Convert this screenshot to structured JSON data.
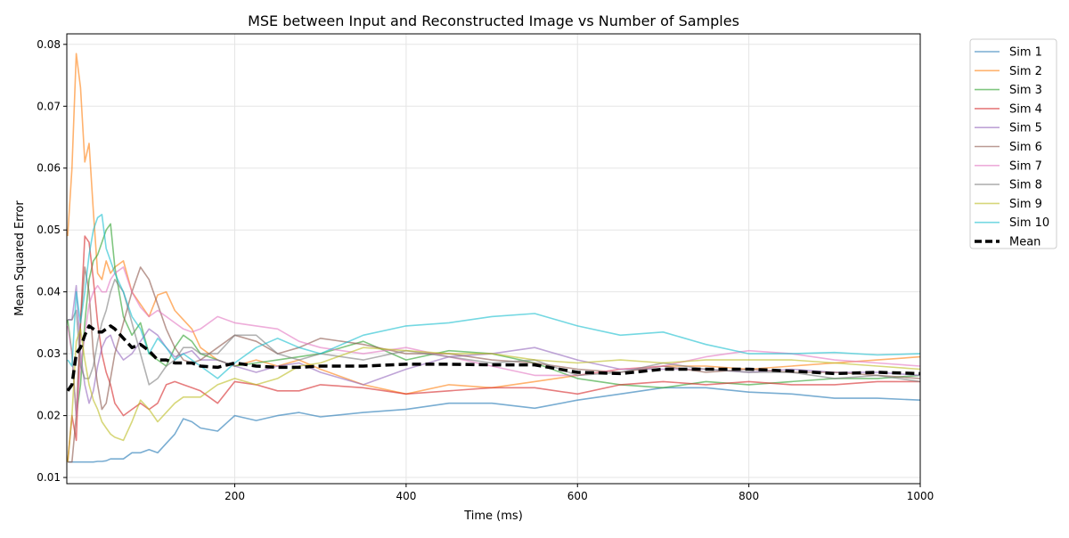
{
  "chart_data": {
    "type": "line",
    "title": "MSE between Input and Reconstructed Image vs Number of Samples",
    "xlabel": "Time (ms)",
    "ylabel": "Mean Squared Error",
    "xlim": [
      4,
      1000
    ],
    "ylim": [
      0.009,
      0.0817
    ],
    "xticks": [
      200,
      400,
      600,
      800,
      1000
    ],
    "yticks": [
      0.01,
      0.02,
      0.03,
      0.04,
      0.05,
      0.06,
      0.07,
      0.08
    ],
    "xtick_labels": [
      "200",
      "400",
      "600",
      "800",
      "1000"
    ],
    "ytick_labels": [
      "0.01",
      "0.02",
      "0.03",
      "0.04",
      "0.05",
      "0.06",
      "0.07",
      "0.08"
    ],
    "grid": true,
    "legend_position": "outside-top-right",
    "x": [
      5,
      10,
      15,
      20,
      25,
      30,
      35,
      40,
      45,
      50,
      55,
      60,
      70,
      80,
      90,
      100,
      110,
      120,
      130,
      140,
      150,
      160,
      180,
      200,
      225,
      250,
      275,
      300,
      350,
      400,
      450,
      500,
      550,
      600,
      650,
      700,
      750,
      800,
      850,
      900,
      950,
      1000
    ],
    "series": [
      {
        "name": "Sim 1",
        "color": "#1f77b4",
        "values": [
          0.0125,
          0.0125,
          0.0125,
          0.0125,
          0.0125,
          0.0125,
          0.0125,
          0.0126,
          0.0126,
          0.0127,
          0.013,
          0.013,
          0.013,
          0.014,
          0.014,
          0.0145,
          0.014,
          0.0155,
          0.017,
          0.0195,
          0.019,
          0.018,
          0.0175,
          0.02,
          0.0192,
          0.02,
          0.0205,
          0.0198,
          0.0205,
          0.021,
          0.022,
          0.022,
          0.0212,
          0.0225,
          0.0235,
          0.0245,
          0.0245,
          0.0238,
          0.0235,
          0.0228,
          0.0228,
          0.0225
        ]
      },
      {
        "name": "Sim 2",
        "color": "#ff7f0e",
        "values": [
          0.049,
          0.06,
          0.0785,
          0.073,
          0.061,
          0.064,
          0.053,
          0.043,
          0.042,
          0.045,
          0.043,
          0.044,
          0.045,
          0.04,
          0.038,
          0.036,
          0.0395,
          0.04,
          0.037,
          0.0355,
          0.034,
          0.031,
          0.029,
          0.028,
          0.029,
          0.028,
          0.029,
          0.0275,
          0.025,
          0.0235,
          0.025,
          0.0245,
          0.0255,
          0.0265,
          0.0275,
          0.028,
          0.028,
          0.0275,
          0.028,
          0.0285,
          0.029,
          0.0295
        ]
      },
      {
        "name": "Sim 3",
        "color": "#2ca02c",
        "values": [
          0.0355,
          0.03,
          0.02,
          0.025,
          0.035,
          0.042,
          0.045,
          0.046,
          0.048,
          0.05,
          0.051,
          0.044,
          0.036,
          0.033,
          0.035,
          0.03,
          0.029,
          0.028,
          0.031,
          0.033,
          0.032,
          0.03,
          0.029,
          0.028,
          0.0285,
          0.029,
          0.0295,
          0.03,
          0.032,
          0.029,
          0.0305,
          0.03,
          0.0285,
          0.026,
          0.025,
          0.0245,
          0.0255,
          0.025,
          0.0255,
          0.026,
          0.026,
          0.0265
        ]
      },
      {
        "name": "Sim 4",
        "color": "#d62728",
        "values": [
          0.0125,
          0.02,
          0.016,
          0.035,
          0.049,
          0.048,
          0.042,
          0.035,
          0.03,
          0.027,
          0.025,
          0.022,
          0.02,
          0.021,
          0.022,
          0.021,
          0.022,
          0.025,
          0.0255,
          0.025,
          0.0245,
          0.024,
          0.022,
          0.0255,
          0.025,
          0.024,
          0.024,
          0.025,
          0.0245,
          0.0235,
          0.024,
          0.0245,
          0.0245,
          0.0235,
          0.025,
          0.0255,
          0.025,
          0.0255,
          0.025,
          0.025,
          0.0255,
          0.0255
        ]
      },
      {
        "name": "Sim 5",
        "color": "#9467bd",
        "values": [
          0.0355,
          0.0355,
          0.041,
          0.03,
          0.025,
          0.022,
          0.024,
          0.028,
          0.031,
          0.0325,
          0.033,
          0.031,
          0.029,
          0.03,
          0.032,
          0.034,
          0.033,
          0.031,
          0.0295,
          0.03,
          0.0305,
          0.029,
          0.029,
          0.028,
          0.027,
          0.028,
          0.0285,
          0.027,
          0.025,
          0.0275,
          0.0295,
          0.03,
          0.031,
          0.029,
          0.0275,
          0.0275,
          0.0275,
          0.027,
          0.0275,
          0.027,
          0.027,
          0.0265
        ]
      },
      {
        "name": "Sim 6",
        "color": "#8c564b",
        "values": [
          0.0125,
          0.0125,
          0.02,
          0.035,
          0.044,
          0.04,
          0.03,
          0.025,
          0.021,
          0.022,
          0.026,
          0.03,
          0.035,
          0.04,
          0.044,
          0.042,
          0.038,
          0.034,
          0.031,
          0.029,
          0.0285,
          0.029,
          0.031,
          0.033,
          0.032,
          0.03,
          0.031,
          0.0325,
          0.0315,
          0.03,
          0.03,
          0.029,
          0.0285,
          0.0275,
          0.027,
          0.028,
          0.027,
          0.0275,
          0.027,
          0.027,
          0.0265,
          0.026
        ]
      },
      {
        "name": "Sim 7",
        "color": "#e377c2",
        "values": [
          0.0345,
          0.03,
          0.02,
          0.028,
          0.033,
          0.038,
          0.04,
          0.041,
          0.04,
          0.04,
          0.042,
          0.043,
          0.044,
          0.04,
          0.0375,
          0.036,
          0.037,
          0.036,
          0.035,
          0.034,
          0.0335,
          0.034,
          0.036,
          0.035,
          0.0345,
          0.034,
          0.032,
          0.031,
          0.03,
          0.031,
          0.0295,
          0.028,
          0.0265,
          0.0265,
          0.0275,
          0.028,
          0.0295,
          0.0305,
          0.03,
          0.029,
          0.0285,
          0.028
        ]
      },
      {
        "name": "Sim 8",
        "color": "#7f7f7f",
        "values": [
          0.0355,
          0.0355,
          0.037,
          0.028,
          0.026,
          0.026,
          0.028,
          0.032,
          0.035,
          0.037,
          0.04,
          0.042,
          0.04,
          0.035,
          0.03,
          0.025,
          0.026,
          0.028,
          0.029,
          0.031,
          0.031,
          0.03,
          0.03,
          0.033,
          0.033,
          0.03,
          0.029,
          0.03,
          0.029,
          0.0305,
          0.0295,
          0.0285,
          0.029,
          0.0265,
          0.027,
          0.0285,
          0.0275,
          0.027,
          0.027,
          0.026,
          0.0265,
          0.0255
        ]
      },
      {
        "name": "Sim 9",
        "color": "#bcbd22",
        "values": [
          0.0125,
          0.02,
          0.032,
          0.034,
          0.029,
          0.025,
          0.0225,
          0.021,
          0.019,
          0.018,
          0.017,
          0.0165,
          0.016,
          0.019,
          0.0225,
          0.021,
          0.019,
          0.0205,
          0.022,
          0.023,
          0.023,
          0.023,
          0.025,
          0.026,
          0.025,
          0.026,
          0.028,
          0.0285,
          0.031,
          0.0305,
          0.03,
          0.03,
          0.029,
          0.0285,
          0.029,
          0.0285,
          0.029,
          0.029,
          0.029,
          0.0285,
          0.028,
          0.0275
        ]
      },
      {
        "name": "Sim 10",
        "color": "#17becf",
        "values": [
          0.029,
          0.028,
          0.04,
          0.035,
          0.04,
          0.046,
          0.05,
          0.052,
          0.0525,
          0.047,
          0.045,
          0.043,
          0.04,
          0.036,
          0.034,
          0.03,
          0.0325,
          0.031,
          0.029,
          0.03,
          0.029,
          0.028,
          0.026,
          0.0285,
          0.031,
          0.0325,
          0.031,
          0.03,
          0.033,
          0.0345,
          0.035,
          0.036,
          0.0365,
          0.0345,
          0.033,
          0.0335,
          0.0315,
          0.03,
          0.03,
          0.0302,
          0.0298,
          0.03
        ]
      },
      {
        "name": "Mean",
        "color": "#000000",
        "dashed": true,
        "values": [
          0.024,
          0.025,
          0.03,
          0.031,
          0.033,
          0.0345,
          0.034,
          0.0335,
          0.0335,
          0.034,
          0.0345,
          0.034,
          0.0325,
          0.031,
          0.0315,
          0.0305,
          0.029,
          0.029,
          0.0285,
          0.0285,
          0.0285,
          0.028,
          0.0278,
          0.0285,
          0.028,
          0.0278,
          0.0278,
          0.028,
          0.028,
          0.0283,
          0.0283,
          0.0282,
          0.0282,
          0.027,
          0.0268,
          0.0275,
          0.0275,
          0.0275,
          0.0272,
          0.0268,
          0.027,
          0.0268
        ]
      }
    ]
  }
}
